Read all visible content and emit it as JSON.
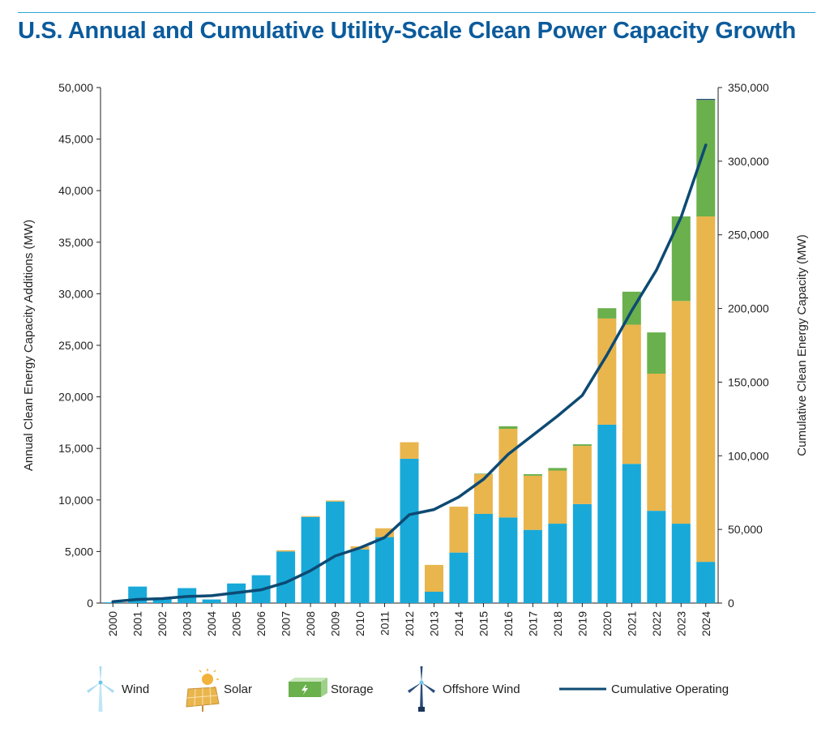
{
  "title": "U.S. Annual and Cumulative Utility-Scale Clean Power Capacity Growth",
  "chart_data": {
    "type": "bar",
    "stacked": true,
    "categories": [
      "2000",
      "2001",
      "2002",
      "2003",
      "2004",
      "2005",
      "2006",
      "2007",
      "2008",
      "2009",
      "2010",
      "2011",
      "2012",
      "2013",
      "2014",
      "2015",
      "2016",
      "2017",
      "2018",
      "2019",
      "2020",
      "2021",
      "2022",
      "2023",
      "2024"
    ],
    "series": [
      {
        "name": "Wind",
        "color": "#18a9d9",
        "axis": "left",
        "values": [
          70,
          1600,
          400,
          1450,
          350,
          1900,
          2700,
          5000,
          8350,
          9850,
          5200,
          6400,
          14000,
          1100,
          4900,
          8650,
          8300,
          7100,
          7700,
          9600,
          17300,
          13500,
          8950,
          7700,
          4000
        ]
      },
      {
        "name": "Solar",
        "color": "#e9b54d",
        "axis": "left",
        "values": [
          0,
          0,
          0,
          0,
          0,
          0,
          0,
          120,
          80,
          100,
          300,
          850,
          1600,
          2600,
          4450,
          3850,
          8600,
          5250,
          5150,
          5650,
          10300,
          13500,
          13300,
          21600,
          33500
        ]
      },
      {
        "name": "Storage",
        "color": "#6ab04c",
        "axis": "left",
        "values": [
          0,
          0,
          0,
          0,
          0,
          0,
          0,
          0,
          0,
          0,
          0,
          0,
          0,
          0,
          0,
          50,
          250,
          150,
          250,
          150,
          1000,
          3200,
          4000,
          8200,
          11300
        ]
      },
      {
        "name": "Offshore Wind",
        "color": "#2a4d7a",
        "axis": "left",
        "values": [
          0,
          0,
          0,
          0,
          0,
          0,
          0,
          0,
          0,
          0,
          0,
          0,
          0,
          0,
          0,
          0,
          0,
          0,
          0,
          0,
          0,
          0,
          0,
          0,
          100
        ]
      },
      {
        "name": "Cumulative Operating",
        "type": "line",
        "color": "#0d4a73",
        "axis": "right",
        "values": [
          1000,
          2500,
          3000,
          4500,
          5000,
          7000,
          9000,
          14000,
          22000,
          32000,
          37500,
          44500,
          60000,
          63500,
          72000,
          84000,
          101000,
          114000,
          127000,
          141000,
          168500,
          198500,
          226000,
          262000,
          311000
        ]
      }
    ],
    "ylabel": "Annual Clean Energy Capacity Additions (MW)",
    "ylabel_right": "Cumulative Clean Energy Capacity (MW)",
    "ylim": [
      0,
      50000
    ],
    "ylim_right": [
      0,
      350000
    ],
    "yticks": [
      "0",
      "5,000",
      "10,000",
      "15,000",
      "20,000",
      "25,000",
      "30,000",
      "35,000",
      "40,000",
      "45,000",
      "50,000"
    ],
    "yticks_right": [
      "0",
      "50,000",
      "100,000",
      "150,000",
      "200,000",
      "250,000",
      "300,000",
      "350,000"
    ],
    "grid": false,
    "legend_position": "bottom"
  },
  "legend": {
    "wind": "Wind",
    "solar": "Solar",
    "storage": "Storage",
    "offshore_wind": "Offshore Wind",
    "cumulative": "Cumulative Operating"
  }
}
